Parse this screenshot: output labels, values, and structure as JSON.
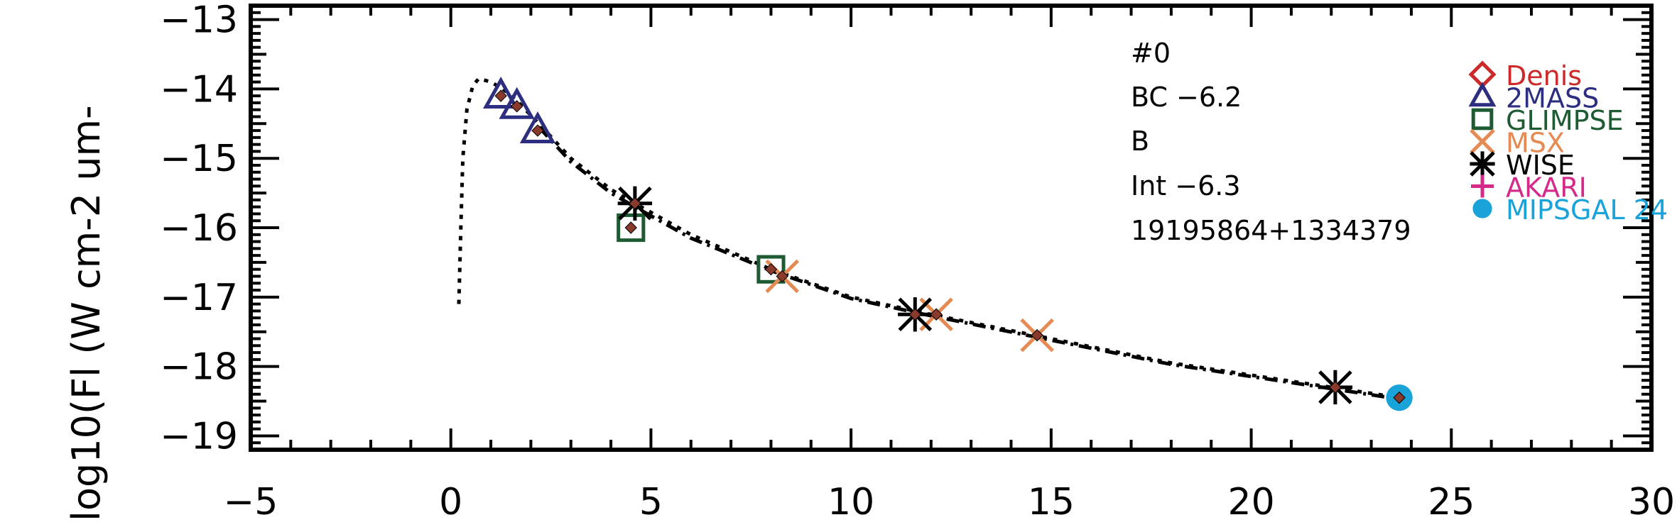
{
  "chart_data": {
    "type": "scatter",
    "title": "",
    "xlabel": "",
    "ylabel": "log10(Fl (W cm-2 um-",
    "xlim": [
      -5,
      30
    ],
    "ylim": [
      -19.2,
      -12.8
    ],
    "x_ticks": [
      -5,
      0,
      5,
      10,
      15,
      20,
      25,
      30
    ],
    "x_tick_labels": [
      "−5",
      "0",
      "5",
      "10",
      "15",
      "20",
      "25",
      "30"
    ],
    "y_ticks": [
      -19,
      -18,
      -17,
      -16,
      -15,
      -14,
      -13
    ],
    "y_tick_labels": [
      "−19",
      "−18",
      "−17",
      "−16",
      "−15",
      "−14",
      "−13"
    ],
    "grid": false,
    "legend_position": "top-right",
    "annotations": [
      "#0",
      "BC  −6.2",
      "B",
      "Int  −6.3",
      "19195864+1334379"
    ],
    "series": [
      {
        "name": "Denis",
        "color": "#cc2a2a",
        "marker": "diamond-open",
        "points": []
      },
      {
        "name": "2MASS",
        "color": "#2e2e80",
        "marker": "triangle-open",
        "points": [
          [
            1.25,
            -14.1
          ],
          [
            1.65,
            -14.25
          ],
          [
            2.17,
            -14.6
          ]
        ]
      },
      {
        "name": "GLIMPSE",
        "color": "#1e5a32",
        "marker": "square-open",
        "points": [
          [
            4.5,
            -16.0
          ],
          [
            8.0,
            -16.6
          ]
        ]
      },
      {
        "name": "MSX",
        "color": "#e48a52",
        "marker": "x",
        "points": [
          [
            8.28,
            -16.7
          ],
          [
            12.13,
            -17.25
          ],
          [
            14.65,
            -17.55
          ]
        ]
      },
      {
        "name": "WISE",
        "color": "#000000",
        "marker": "asterisk",
        "points": [
          [
            4.6,
            -15.65
          ],
          [
            11.6,
            -17.25
          ],
          [
            22.1,
            -18.3
          ]
        ]
      },
      {
        "name": "AKARI",
        "color": "#d42a8a",
        "marker": "plus",
        "points": []
      },
      {
        "name": "MIPSGAL 24",
        "color": "#1aa3d8",
        "marker": "circle-filled",
        "points": [
          [
            23.7,
            -18.45
          ]
        ]
      }
    ],
    "model_points": {
      "color": "#8a3a2a",
      "points": [
        [
          1.25,
          -14.1
        ],
        [
          1.65,
          -14.25
        ],
        [
          2.17,
          -14.6
        ],
        [
          4.5,
          -16.0
        ],
        [
          4.6,
          -15.65
        ],
        [
          8.0,
          -16.6
        ],
        [
          8.28,
          -16.7
        ],
        [
          11.6,
          -17.25
        ],
        [
          12.13,
          -17.25
        ],
        [
          14.65,
          -17.55
        ],
        [
          22.1,
          -18.3
        ],
        [
          23.7,
          -18.45
        ]
      ]
    },
    "lines": [
      {
        "style": "dotted",
        "points": [
          [
            0.2,
            -17.1
          ],
          [
            0.25,
            -16.0
          ],
          [
            0.3,
            -15.0
          ],
          [
            0.4,
            -14.3
          ],
          [
            0.55,
            -13.95
          ],
          [
            0.7,
            -13.85
          ],
          [
            1.0,
            -13.9
          ],
          [
            1.3,
            -14.0
          ],
          [
            1.7,
            -14.2
          ],
          [
            2.2,
            -14.5
          ],
          [
            3.0,
            -15.0
          ],
          [
            4.0,
            -15.45
          ],
          [
            4.6,
            -15.65
          ],
          [
            6.0,
            -16.1
          ],
          [
            8.0,
            -16.6
          ],
          [
            10.0,
            -17.0
          ],
          [
            12.0,
            -17.25
          ],
          [
            15.0,
            -17.6
          ],
          [
            18.0,
            -17.95
          ],
          [
            22.0,
            -18.3
          ],
          [
            23.7,
            -18.45
          ]
        ]
      },
      {
        "style": "dash-dot",
        "points": [
          [
            2.2,
            -14.55
          ],
          [
            3.0,
            -15.05
          ],
          [
            4.0,
            -15.5
          ],
          [
            4.6,
            -15.7
          ],
          [
            6.0,
            -16.15
          ],
          [
            8.0,
            -16.62
          ],
          [
            10.0,
            -17.02
          ],
          [
            12.0,
            -17.27
          ],
          [
            15.0,
            -17.62
          ],
          [
            18.0,
            -17.97
          ],
          [
            22.0,
            -18.32
          ],
          [
            23.7,
            -18.47
          ]
        ]
      }
    ]
  }
}
